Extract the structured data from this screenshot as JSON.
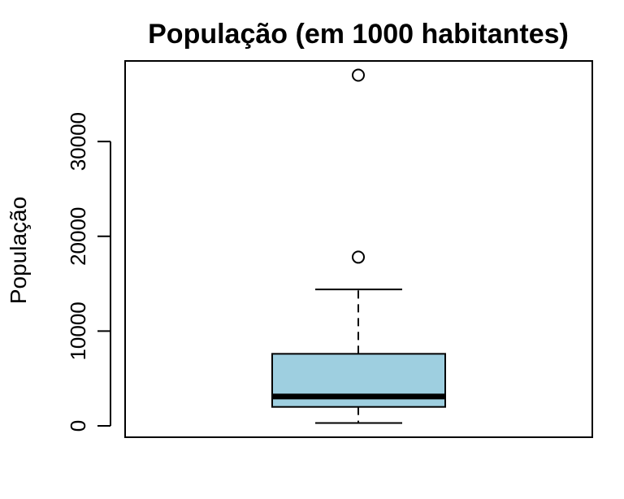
{
  "chart_data": {
    "type": "boxplot",
    "title": "População (em 1000 habitantes)",
    "xlabel": "",
    "ylabel": "População",
    "ylim": [
      -1200,
      38500
    ],
    "yticks": [
      0,
      10000,
      20000,
      30000
    ],
    "ytick_labels": [
      "0",
      "10000",
      "20000",
      "30000"
    ],
    "grid": false,
    "box": {
      "whisker_low": 300,
      "q1": 2000,
      "median": 3100,
      "q3": 7600,
      "whisker_high": 14400,
      "outliers": [
        17800,
        37000
      ]
    },
    "colors": {
      "box_fill": "#9ecfe0",
      "stroke": "#000000"
    }
  }
}
